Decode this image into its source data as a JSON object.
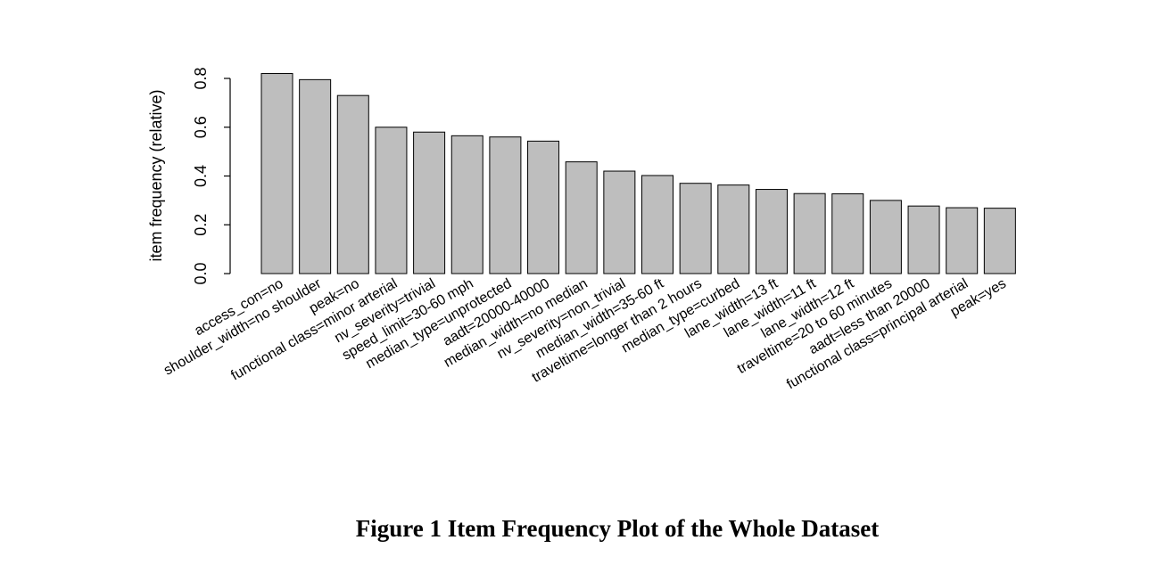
{
  "figure": {
    "caption": "Figure 1 Item Frequency Plot of the Whole Dataset"
  },
  "chart_data": {
    "type": "bar",
    "title": "",
    "xlabel": "",
    "ylabel": "item frequency (relative)",
    "ylim": [
      0,
      0.8
    ],
    "yticks": [
      "0.0",
      "0.2",
      "0.4",
      "0.6",
      "0.8"
    ],
    "ytick_values": [
      0,
      0.2,
      0.4,
      0.6,
      0.8
    ],
    "bar_color": "#bebebe",
    "grid": false,
    "categories": [
      "access_con=no",
      "shoulder_width=no shoulder",
      "peak=no",
      "functional class=minor arterial",
      "nv_severity=trivial",
      "speed_limit=30-60 mph",
      "median_type=unprotected",
      "aadt=20000-40000",
      "median_width=no median",
      "nv_severity=non_trivial",
      "median_width=35-60 ft",
      "traveltime=longer than 2 hours",
      "median_type=curbed",
      "lane_width=13 ft",
      "lane_width=11 ft",
      "lane_width=12 ft",
      "traveltime=20 to 60 minutes",
      "aadt=less than 20000",
      "functional class=principal arterial",
      "peak=yes"
    ],
    "values": [
      0.82,
      0.795,
      0.73,
      0.6,
      0.58,
      0.565,
      0.56,
      0.543,
      0.458,
      0.42,
      0.402,
      0.37,
      0.363,
      0.345,
      0.328,
      0.327,
      0.3,
      0.277,
      0.27,
      0.268
    ]
  }
}
